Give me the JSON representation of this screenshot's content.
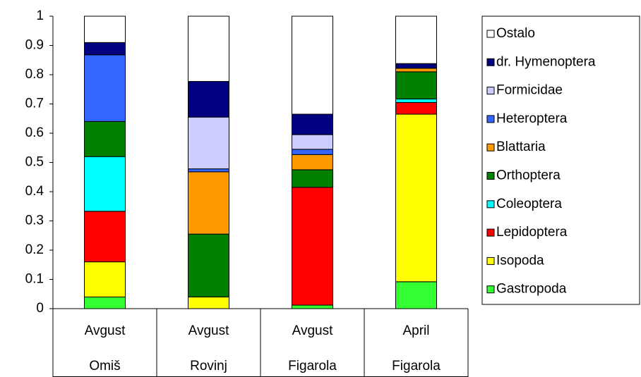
{
  "chart_data": {
    "type": "stacked_bar",
    "categories": [
      [
        "Avgust",
        "Omiš"
      ],
      [
        "Avgust",
        "Rovinj"
      ],
      [
        "Avgust",
        "Figarola"
      ],
      [
        "April",
        "Figarola"
      ]
    ],
    "series": [
      {
        "name": "Gastropoda",
        "color": "#33ff33",
        "values": [
          0.04,
          0,
          0.012,
          0.092
        ]
      },
      {
        "name": "Isopoda",
        "color": "#ffff00",
        "values": [
          0.12,
          0.04,
          0,
          0.573
        ]
      },
      {
        "name": "Lepidoptera",
        "color": "#ff0000",
        "values": [
          0.173,
          0,
          0.403,
          0.04
        ]
      },
      {
        "name": "Coleoptera",
        "color": "#00ffff",
        "values": [
          0.187,
          0,
          0,
          0.012
        ]
      },
      {
        "name": "Orthoptera",
        "color": "#008000",
        "values": [
          0.12,
          0.215,
          0.06,
          0.093
        ]
      },
      {
        "name": "Blattaria",
        "color": "#ff9900",
        "values": [
          0,
          0.213,
          0.052,
          0.012
        ]
      },
      {
        "name": "Heteroptera",
        "color": "#3366ff",
        "values": [
          0.228,
          0.01,
          0.018,
          0
        ]
      },
      {
        "name": "Formicidae",
        "color": "#ccccff",
        "values": [
          0,
          0.177,
          0.05,
          0
        ]
      },
      {
        "name": "dr. Hymenoptera",
        "color": "#000080",
        "values": [
          0.042,
          0.122,
          0.07,
          0.016
        ]
      },
      {
        "name": "Ostalo",
        "color": "#ffffff",
        "values": [
          0.09,
          0.223,
          0.335,
          0.162
        ]
      }
    ],
    "ylim": [
      0,
      1
    ],
    "yticks": [
      0,
      0.1,
      0.2,
      0.3,
      0.4,
      0.5,
      0.6,
      0.7,
      0.8,
      0.9,
      1
    ],
    "grid": false,
    "legend": "right"
  }
}
